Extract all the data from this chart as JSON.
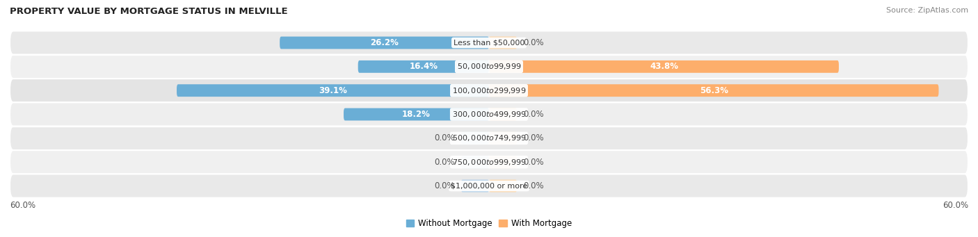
{
  "title": "PROPERTY VALUE BY MORTGAGE STATUS IN MELVILLE",
  "source": "Source: ZipAtlas.com",
  "categories": [
    "Less than $50,000",
    "$50,000 to $99,999",
    "$100,000 to $299,999",
    "$300,000 to $499,999",
    "$500,000 to $749,999",
    "$750,000 to $999,999",
    "$1,000,000 or more"
  ],
  "without_mortgage": [
    26.2,
    16.4,
    39.1,
    18.2,
    0.0,
    0.0,
    0.0
  ],
  "with_mortgage": [
    0.0,
    43.8,
    56.3,
    0.0,
    0.0,
    0.0,
    0.0
  ],
  "color_without": "#6aaed6",
  "color_with": "#fdae6b",
  "color_without_stub": "#aacce8",
  "color_with_stub": "#fdd5a5",
  "max_val": 60.0,
  "stub_val": 3.5,
  "bar_height": 0.52,
  "row_colors": [
    "#e9e9e9",
    "#f0f0f0",
    "#e4e4e4",
    "#eeeeee",
    "#e9e9e9",
    "#f0f0f0",
    "#e9e9e9"
  ],
  "label_fontsize": 8.5,
  "title_fontsize": 9.5,
  "source_fontsize": 8,
  "cat_fontsize": 8.0
}
